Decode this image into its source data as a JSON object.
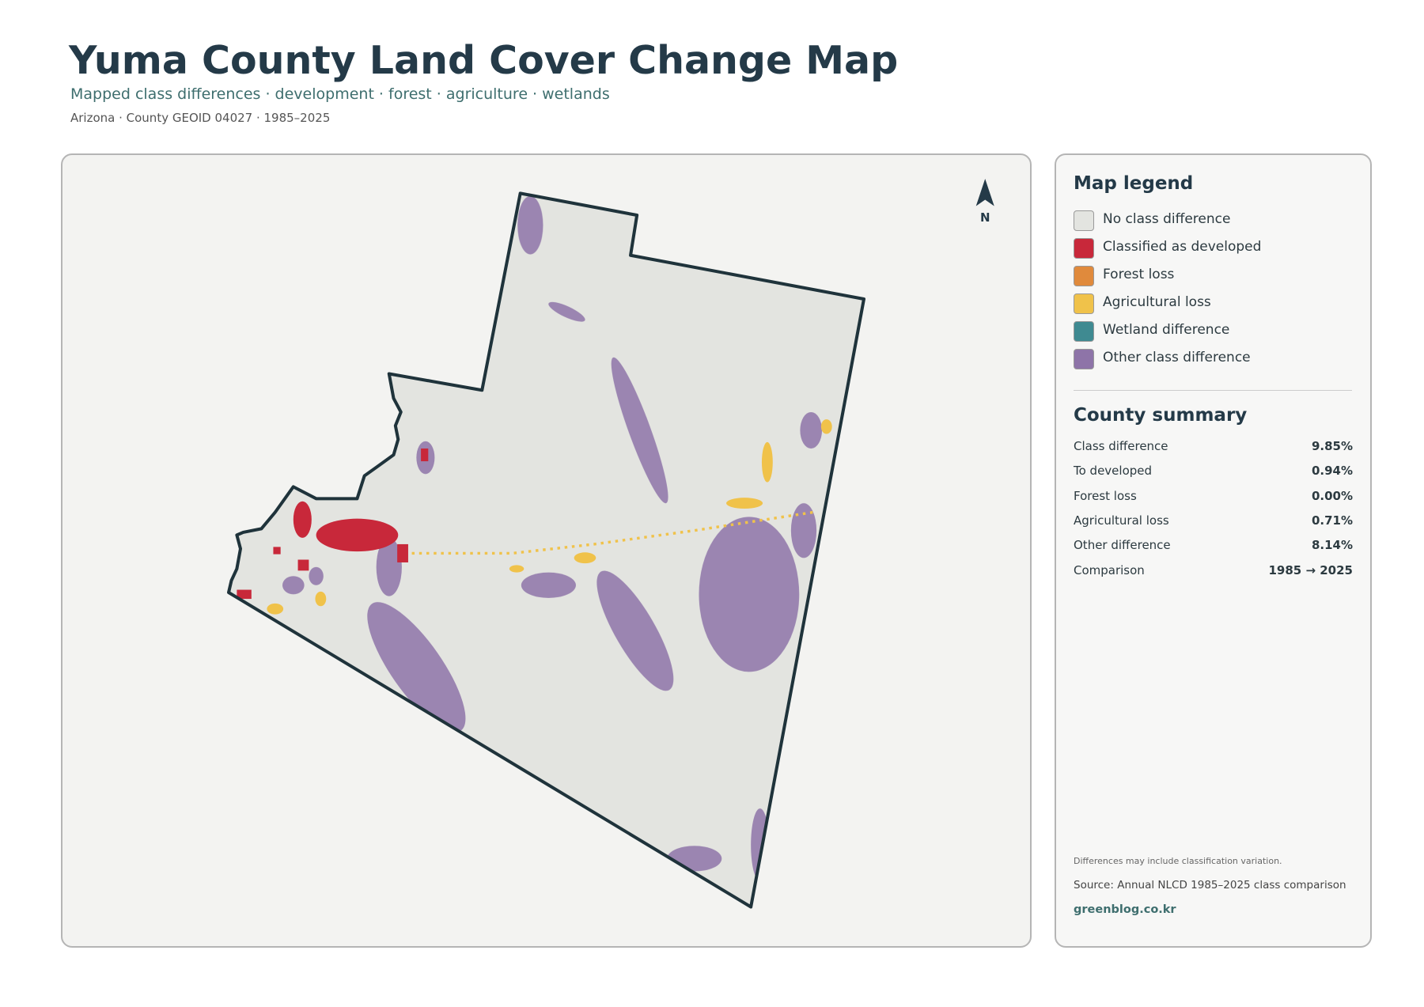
{
  "header": {
    "title": "Yuma County Land Cover Change Map",
    "subtitle": "Mapped class differences · development · forest · agriculture · wetlands",
    "meta": "Arizona · County GEOID 04027 · 1985–2025"
  },
  "map": {
    "north": "N"
  },
  "legend": {
    "title": "Map legend",
    "items": [
      {
        "label": "No class difference",
        "color": "#e3e4e0"
      },
      {
        "label": "Classified as developed",
        "color": "#c8283a"
      },
      {
        "label": "Forest loss",
        "color": "#e08a3c"
      },
      {
        "label": "Agricultural loss",
        "color": "#f0c24a"
      },
      {
        "label": "Wetland difference",
        "color": "#3f8a91"
      },
      {
        "label": "Other class difference",
        "color": "#8e74a8"
      }
    ]
  },
  "summary": {
    "title": "County summary",
    "rows": [
      [
        "Class difference",
        "9.85%"
      ],
      [
        "To developed",
        "0.94%"
      ],
      [
        "Forest loss",
        "0.00%"
      ],
      [
        "Agricultural loss",
        "0.71%"
      ],
      [
        "Other difference",
        "8.14%"
      ],
      [
        "Comparison",
        "1985 → 2025"
      ]
    ]
  },
  "footer": {
    "note": "Differences may include classification variation.",
    "source": "Source: Annual NLCD 1985–2025 class comparison",
    "site": "greenblog.co.kr"
  }
}
